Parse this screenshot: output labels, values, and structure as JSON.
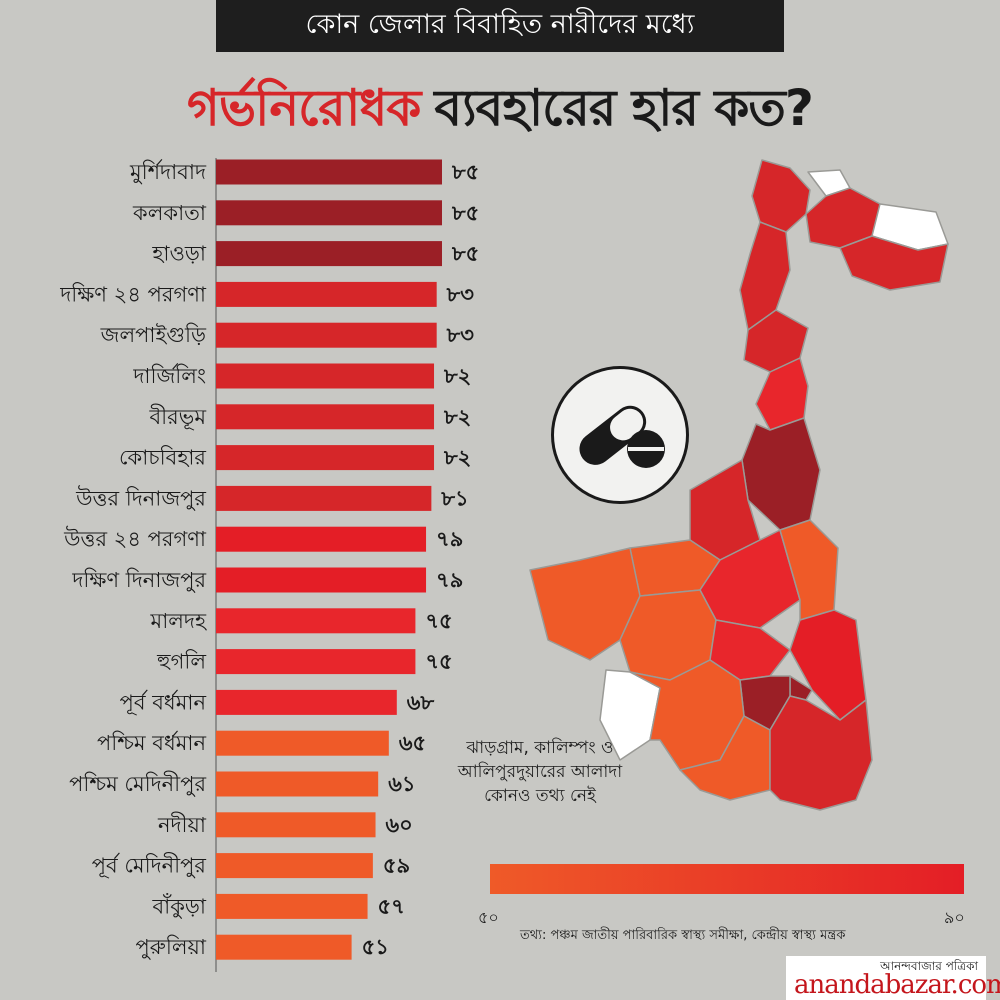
{
  "header": {
    "banner": "কোন জেলার বিবাহিত নারীদের মধ্যে",
    "title_accent": "গর্ভনিরোধক",
    "title_rest": "ব্যবহারের হার কত?"
  },
  "chart_data": {
    "type": "bar",
    "orientation": "horizontal",
    "xlim": [
      0,
      90
    ],
    "categories": [
      "মুর্শিদাবাদ",
      "কলকাতা",
      "হাওড়া",
      "দক্ষিণ ২৪ পরগণা",
      "জলপাইগুড়ি",
      "দার্জিলিং",
      "বীরভূম",
      "কোচবিহার",
      "উত্তর দিনাজপুর",
      "উত্তর ২৪ পরগণা",
      "দক্ষিণ দিনাজপুর",
      "মালদহ",
      "হুগলি",
      "পূর্ব বর্ধমান",
      "পশ্চিম বর্ধমান",
      "পশ্চিম মেদিনীপুর",
      "নদীয়া",
      "পূর্ব মেদিনীপুর",
      "বাঁকুড়া",
      "পুরুলিয়া"
    ],
    "values": [
      85,
      85,
      85,
      83,
      83,
      82,
      82,
      82,
      81,
      79,
      79,
      75,
      75,
      68,
      65,
      61,
      60,
      59,
      57,
      51
    ],
    "value_labels": [
      "৮৫",
      "৮৫",
      "৮৫",
      "৮৩",
      "৮৩",
      "৮২",
      "৮২",
      "৮২",
      "৮১",
      "৭৯",
      "৭৯",
      "৭৫",
      "৭৫",
      "৬৮",
      "৬৫",
      "৬১",
      "৬০",
      "৫৯",
      "৫৭",
      "৫১"
    ],
    "colors": [
      "#9b1f26",
      "#9b1f26",
      "#9b1f26",
      "#d62629",
      "#d62629",
      "#d62629",
      "#d62629",
      "#d62629",
      "#d62629",
      "#e41e26",
      "#e41e26",
      "#e8262c",
      "#e8262c",
      "#e8262c",
      "#ef5a28",
      "#ef5a28",
      "#ef5a28",
      "#ef5a28",
      "#ef5a28",
      "#ef5a28"
    ]
  },
  "map": {
    "no_data_note": "ঝাড়গ্রাম, কালিম্পং ও আলিপুরদুয়ারের আলাদা কোনও তথ্য নেই",
    "pill_icon": "pill-capsule-icon"
  },
  "legend": {
    "min_label": "৫০",
    "max_label": "৯০",
    "gradient_from": "#ef5a28",
    "gradient_to": "#e41e26"
  },
  "footer": {
    "source": "তথ্য: পঞ্চম জাতীয় পারিবারিক স্বাস্থ্য সমীক্ষা, কেন্দ্রীয় স্বাস্থ্য মন্ত্রক",
    "brand_bn": "আনন্দবাজার পত্রিকা",
    "brand_en": "anandabazar.com"
  }
}
